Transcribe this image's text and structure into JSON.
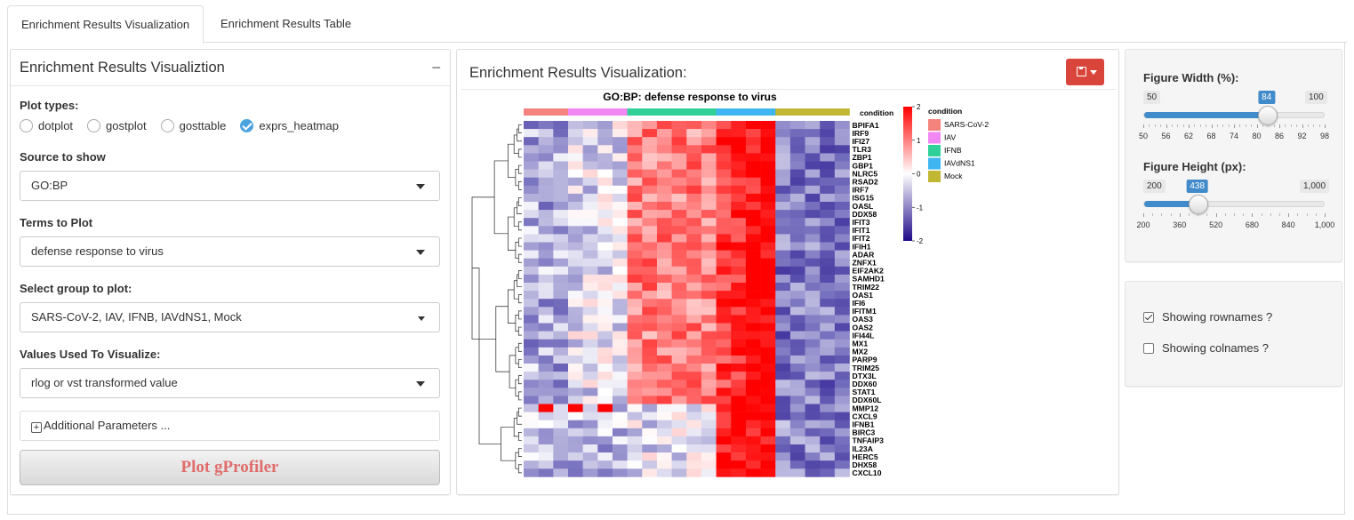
{
  "tabs": [
    {
      "label": "Enrichment Results Visualization",
      "active": true
    },
    {
      "label": "Enrichment Results Table",
      "active": false
    }
  ],
  "left_panel": {
    "title": "Enrichment Results Visualiztion",
    "collapse_symbol": "−",
    "plot_types_label": "Plot types:",
    "plot_types": [
      {
        "label": "dotplot",
        "selected": false
      },
      {
        "label": "gostplot",
        "selected": false
      },
      {
        "label": "gosttable",
        "selected": false
      },
      {
        "label": "exprs_heatmap",
        "selected": true
      }
    ],
    "source_label": "Source to show",
    "source_value": "GO:BP",
    "terms_label": "Terms to Plot",
    "terms_value": "defense response to virus",
    "group_label": "Select group to plot:",
    "group_value": "SARS-CoV-2, IAV, IFNB, IAVdNS1, Mock",
    "values_label": "Values Used To Visualize:",
    "values_value": "rlog or vst transformed value",
    "additional_label": "Additional Parameters ...",
    "plot_button": "Plot gProfiler"
  },
  "center_panel": {
    "title": "Enrichment Results Visualization:",
    "save_icon": "floppy-disk-icon"
  },
  "heatmap": {
    "title": "GO:BP: defense response to virus",
    "annotation_label": "condition",
    "genes": [
      "BPIFA1",
      "IRF9",
      "IFI27",
      "TLR3",
      "ZBP1",
      "GBP1",
      "NLRC5",
      "RSAD2",
      "IRF7",
      "ISG15",
      "OASL",
      "DDX58",
      "IFIT3",
      "IFIT1",
      "IFIT2",
      "IFIH1",
      "ADAR",
      "ZNFX1",
      "EIF2AK2",
      "SAMHD1",
      "TRIM22",
      "OAS1",
      "IFI6",
      "IFITM1",
      "OAS3",
      "OAS2",
      "IFI44L",
      "MX1",
      "MX2",
      "PARP9",
      "TRIM25",
      "DTX3L",
      "DDX60",
      "STAT1",
      "DDX60L",
      "MMP12",
      "CXCL9",
      "IFNB1",
      "BIRC3",
      "TNFAIP3",
      "IL23A",
      "HERC5",
      "DHX58",
      "CXCL10"
    ],
    "colorbar_ticks": [
      "2",
      "1",
      "0",
      "-1",
      "-2"
    ],
    "legend_title": "condition",
    "conditions": [
      {
        "name": "SARS-CoV-2",
        "color": "#f4837d",
        "columns": 3
      },
      {
        "name": "IAV",
        "color": "#f187f3",
        "columns": 4
      },
      {
        "name": "IFNB",
        "color": "#2fd199",
        "columns": 6
      },
      {
        "name": "IAVdNS1",
        "color": "#3fb6f1",
        "columns": 4
      },
      {
        "name": "Mock",
        "color": "#c0b732",
        "columns": 5
      }
    ]
  },
  "figure_width": {
    "label": "Figure Width (%):",
    "min": 50,
    "max": 100,
    "value": 84,
    "min_label": "50",
    "max_label": "100",
    "value_label": "84",
    "tick_labels": [
      "50",
      "56",
      "62",
      "68",
      "74",
      "80",
      "86",
      "92",
      "98"
    ]
  },
  "figure_height": {
    "label": "Figure Height (px):",
    "min": 200,
    "max": 1000,
    "value": 438,
    "min_label": "200",
    "max_label": "1,000",
    "value_label": "438",
    "tick_labels": [
      "200",
      "360",
      "520",
      "680",
      "840",
      "1,000"
    ]
  },
  "options": [
    {
      "label": "Showing rownames ?",
      "checked": true
    },
    {
      "label": "Showing colnames ?",
      "checked": false
    }
  ]
}
